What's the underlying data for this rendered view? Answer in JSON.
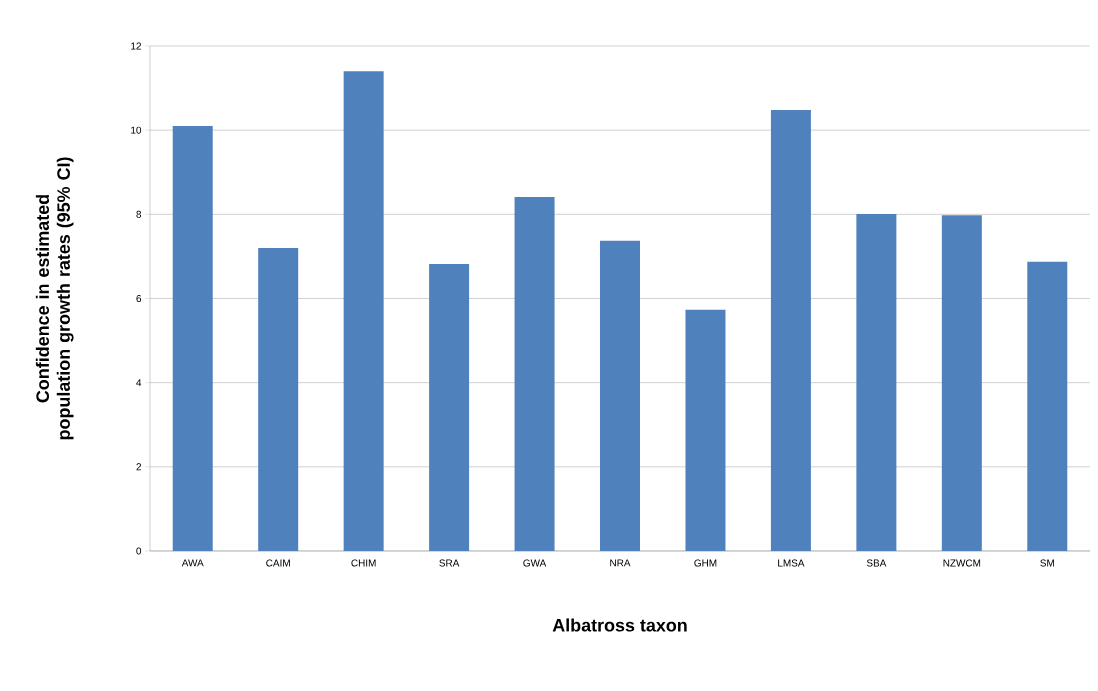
{
  "chart_data": {
    "type": "bar",
    "xlabel": "Albatross taxon",
    "ylabel": "Confidence in estimated population growth rates (95% CI)",
    "categories": [
      "AWA",
      "CAIM",
      "CHIM",
      "SRA",
      "GWA",
      "NRA",
      "GHM",
      "LMSA",
      "SBA",
      "NZWCM",
      "SM"
    ],
    "values": [
      10.1,
      7.2,
      11.4,
      6.82,
      8.41,
      7.37,
      5.73,
      10.48,
      8.01,
      7.98,
      6.87
    ],
    "color": "#4f81bd",
    "ylim": [
      0,
      12
    ],
    "yticks": [
      0,
      2,
      4,
      6,
      8,
      10,
      12
    ],
    "grid": "y"
  }
}
